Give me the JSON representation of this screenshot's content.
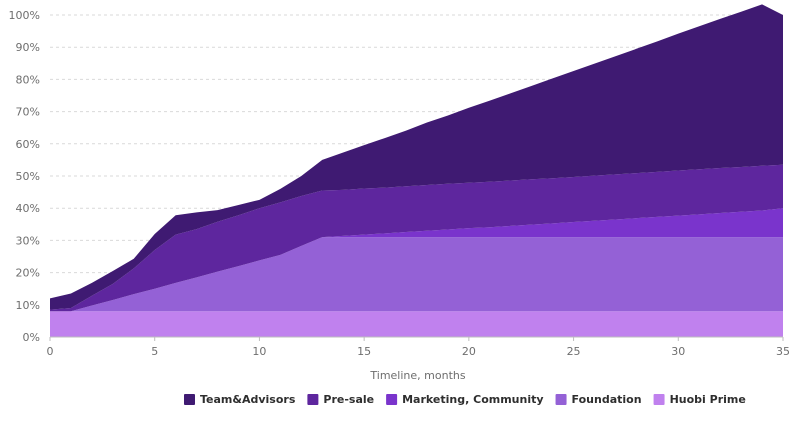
{
  "chart_data": {
    "type": "area",
    "stacked": true,
    "x_label": "Timeline, months",
    "y_label": "",
    "x_range": [
      0,
      35
    ],
    "y_range": [
      0,
      100
    ],
    "x_ticks": [
      "0",
      "5",
      "10",
      "15",
      "20",
      "25",
      "30",
      "35"
    ],
    "y_ticks": [
      "0%",
      "10%",
      "20%",
      "30%",
      "40%",
      "50%",
      "60%",
      "70%",
      "80%",
      "90%",
      "100%"
    ],
    "grid": "horizontal dashed",
    "legend_position": "bottom",
    "x": [
      0,
      1,
      2,
      3,
      4,
      5,
      6,
      7,
      8,
      9,
      10,
      11,
      12,
      13,
      14,
      15,
      16,
      17,
      18,
      19,
      20,
      21,
      22,
      23,
      24,
      25,
      26,
      27,
      28,
      29,
      30,
      31,
      32,
      33,
      34,
      35
    ],
    "series": [
      {
        "name": "Huobi Prime",
        "color": "#c081ee",
        "values": [
          8,
          8,
          8,
          8,
          8,
          8,
          8,
          8,
          8,
          8,
          8,
          8,
          8,
          8,
          8,
          8,
          8,
          8,
          8,
          8,
          8,
          8,
          8,
          8,
          8,
          8,
          8,
          8,
          8,
          8,
          8,
          8,
          8,
          8,
          8,
          8
        ]
      },
      {
        "name": "Foundation",
        "color": "#9461d6",
        "values": [
          0,
          0,
          1.8,
          3.5,
          5.3,
          7,
          8.8,
          10.5,
          12.3,
          14,
          15.8,
          17.5,
          20.3,
          23,
          23,
          23,
          23,
          23,
          23,
          23,
          23,
          23,
          23,
          23,
          23,
          23,
          23,
          23,
          23,
          23,
          23,
          23,
          23,
          23,
          23,
          23
        ]
      },
      {
        "name": "Marketing, Community",
        "color": "#7a34cc",
        "values": [
          0,
          0,
          0,
          0,
          0,
          0,
          0,
          0,
          0,
          0,
          0,
          0,
          0,
          0,
          0.4,
          0.8,
          1.2,
          1.6,
          2,
          2.4,
          2.8,
          3.1,
          3.5,
          3.9,
          4.3,
          4.7,
          5.1,
          5.5,
          5.9,
          6.3,
          6.7,
          7.1,
          7.5,
          7.9,
          8.3,
          9
        ]
      },
      {
        "name": "Pre-sale",
        "color": "#5e269e",
        "values": [
          0.5,
          1,
          3,
          5,
          8,
          12,
          15,
          15,
          15.5,
          15.8,
          16.2,
          16.3,
          15.5,
          14.5,
          14.3,
          14.3,
          14.2,
          14.2,
          14.2,
          14.2,
          14.1,
          14.1,
          14.1,
          14.1,
          14,
          14,
          14,
          14,
          14,
          14,
          14,
          14,
          14,
          13.9,
          13.9,
          13.5
        ]
      },
      {
        "name": "Team&Advisors",
        "color": "#3f1a72",
        "values": [
          3.5,
          4.5,
          4,
          4,
          3,
          5,
          6,
          5.2,
          3.6,
          3.2,
          2.6,
          4.2,
          6.2,
          9.5,
          11.6,
          13.5,
          15.4,
          17.3,
          19.4,
          21.2,
          23.3,
          25.2,
          27.1,
          29,
          31,
          32.9,
          34.8,
          36.7,
          38.6,
          40.5,
          42.5,
          44.4,
          46.3,
          48.2,
          50.1,
          46.5
        ]
      }
    ]
  }
}
